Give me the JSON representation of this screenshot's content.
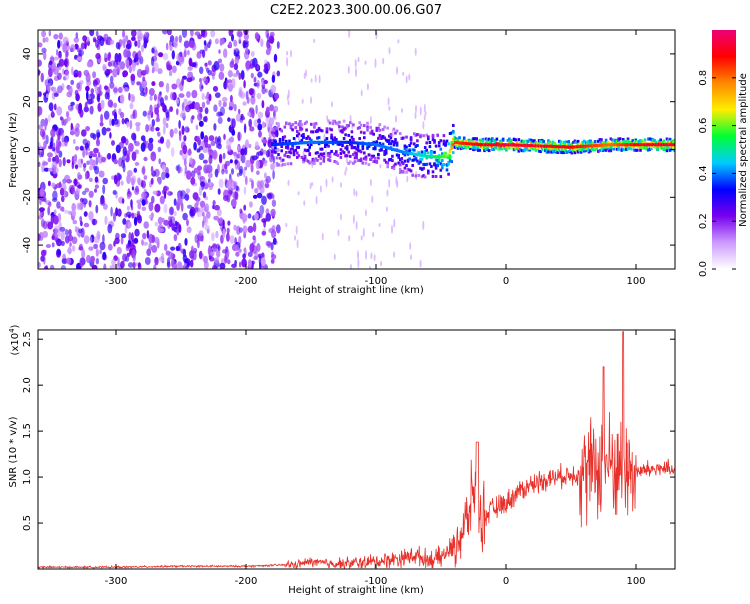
{
  "title": "C2E2.2023.300.00.06.G07",
  "chart_data": [
    {
      "type": "heatmap",
      "xlabel": "Height of straight line (km)",
      "ylabel": "Frequency (Hz)",
      "xlim": [
        -360,
        130
      ],
      "ylim": [
        -50,
        50
      ],
      "x_ticks": [
        -300,
        -200,
        -100,
        0,
        100
      ],
      "y_ticks": [
        -40,
        -20,
        0,
        20,
        40
      ],
      "colorbar": {
        "label": "Normalized spectral amplitude",
        "range": [
          0,
          1
        ],
        "ticks": [
          "0.0",
          "0.2",
          "0.4",
          "0.6",
          "0.8"
        ],
        "colormap": [
          "#ffffff",
          "#cc99ff",
          "#7700ee",
          "#0000ff",
          "#00ccff",
          "#00ff33",
          "#ffee00",
          "#ff8800",
          "#ff0000",
          "#ee0077"
        ]
      },
      "ridge": {
        "x": [
          -180,
          -150,
          -120,
          -100,
          -80,
          -60,
          -45,
          -40,
          -20,
          0,
          50,
          80,
          100,
          130
        ],
        "freq": [
          2,
          3,
          3,
          2,
          -1,
          -3,
          -3,
          3,
          2,
          2,
          1,
          2,
          2,
          2
        ],
        "amplitude": [
          0.35,
          0.4,
          0.35,
          0.4,
          0.4,
          0.5,
          0.6,
          0.85,
          0.9,
          0.95,
          0.9,
          0.8,
          0.9,
          0.95
        ]
      },
      "noise_region": {
        "x_from": -360,
        "x_to": -175,
        "amplitude": 0.25
      }
    },
    {
      "type": "line",
      "xlabel": "Height of straight line (km)",
      "ylabel": "SNR (10 * v/v)",
      "y_scale_label": "(x10",
      "y_scale_exponent": "4",
      "y_scale_suffix": ")",
      "xlim": [
        -360,
        130
      ],
      "ylim": [
        0,
        2.6
      ],
      "x_ticks": [
        -300,
        -200,
        -100,
        0,
        100
      ],
      "y_ticks": [
        0.5,
        1.0,
        1.5,
        2.0,
        2.5
      ],
      "series": [
        {
          "color": "#e8302a",
          "x": [
            -360,
            -300,
            -250,
            -200,
            -160,
            -150,
            -140,
            -120,
            -100,
            -80,
            -70,
            -60,
            -50,
            -40,
            -30,
            -25,
            -20,
            -10,
            0,
            10,
            20,
            30,
            40,
            50,
            60,
            70,
            80,
            90,
            100,
            110,
            120,
            130
          ],
          "y": [
            0.02,
            0.02,
            0.03,
            0.03,
            0.05,
            0.08,
            0.06,
            0.06,
            0.08,
            0.12,
            0.15,
            0.1,
            0.12,
            0.25,
            0.5,
            0.9,
            0.55,
            0.65,
            0.72,
            0.85,
            0.92,
            0.98,
            1.0,
            1.03,
            1.05,
            1.1,
            1.15,
            1.1,
            1.05,
            1.08,
            1.1,
            1.05
          ]
        }
      ]
    }
  ]
}
